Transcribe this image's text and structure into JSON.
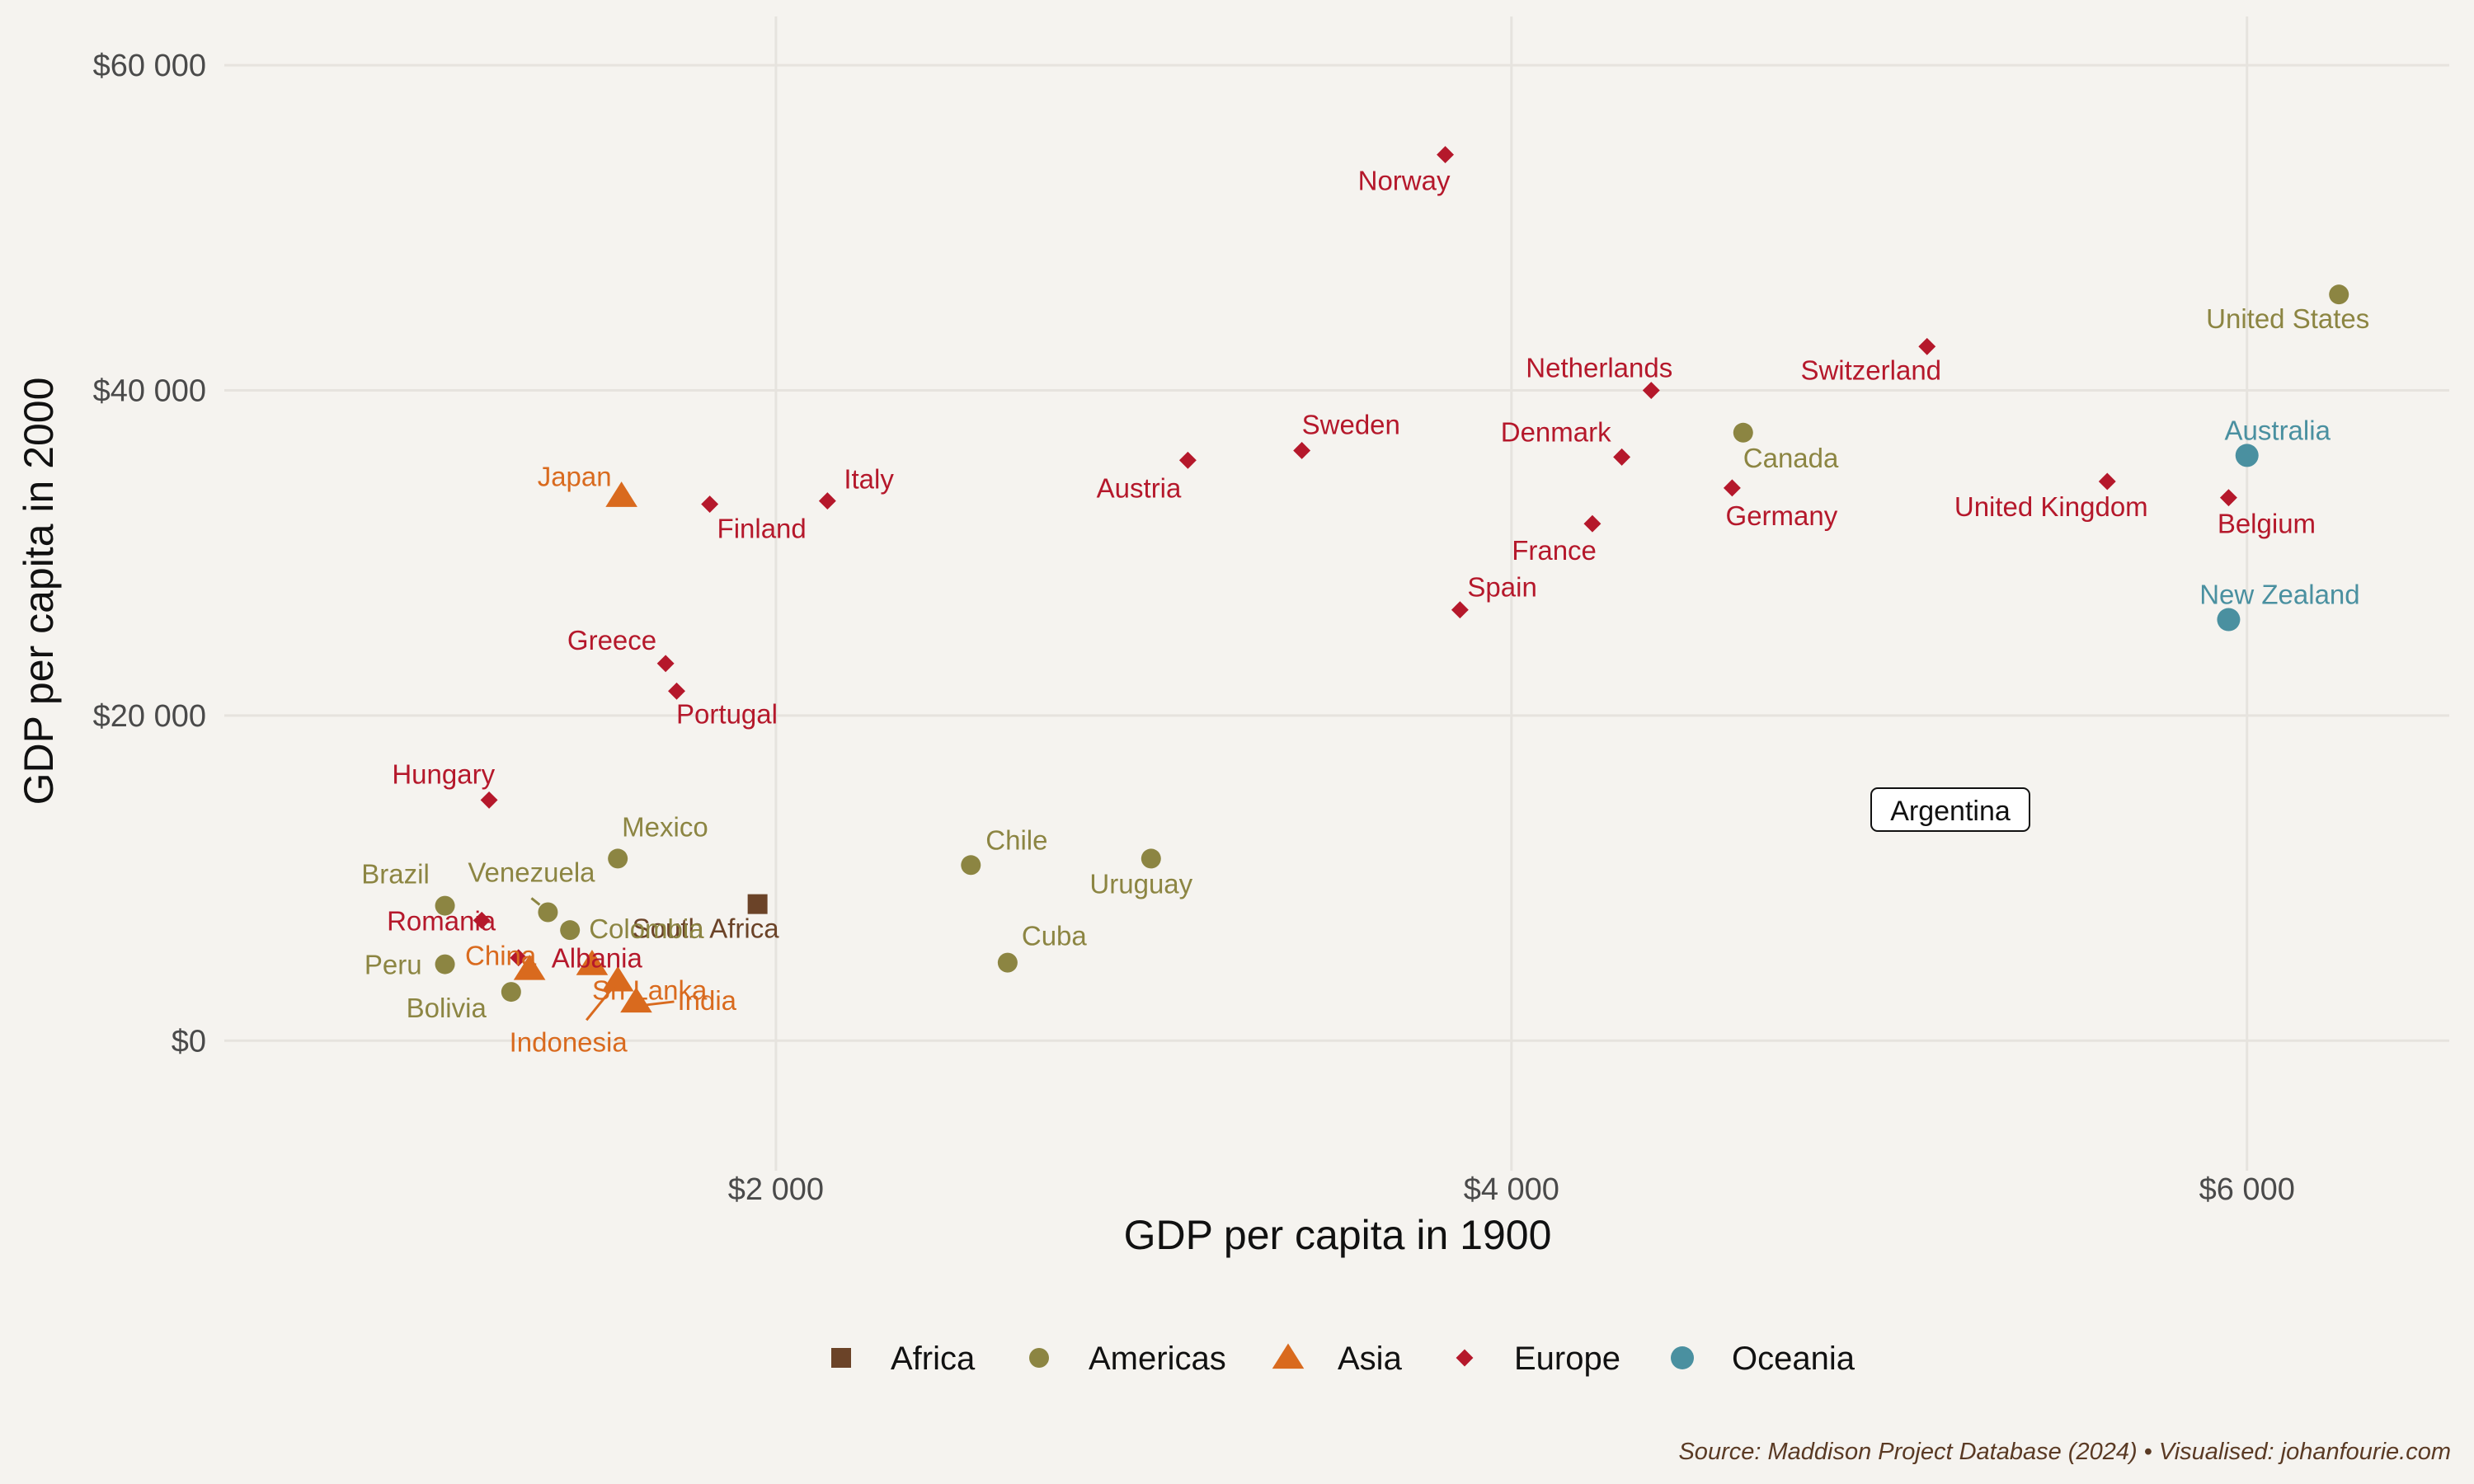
{
  "chart_data": {
    "type": "scatter",
    "xlabel": "GDP per capita in 1900",
    "ylabel": "GDP per capita in 2000",
    "xlim": [
      500,
      6550
    ],
    "ylim": [
      -8000,
      63000
    ],
    "x_ticks": [
      2000,
      4000,
      6000
    ],
    "x_tick_labels": [
      "$2 000",
      "$4 000",
      "$6 000"
    ],
    "y_ticks": [
      0,
      20000,
      40000,
      60000
    ],
    "y_tick_labels": [
      "$0",
      "$20 000",
      "$40 000",
      "$60 000"
    ],
    "grid": true,
    "legend_position": "bottom",
    "caption": "Source: Maddison Project Database (2024) • Visualised: johanfourie.com",
    "annotation": {
      "text": "Argentina",
      "x": 5120,
      "y": 17000
    },
    "series": [
      {
        "name": "Africa",
        "shape": "square",
        "color": "#6b4328",
        "points": [
          {
            "label": "South Africa",
            "x": 1950,
            "y": 8400
          }
        ]
      },
      {
        "name": "Americas",
        "shape": "circle",
        "color": "#8c8542",
        "points": [
          {
            "label": "United States",
            "x": 6250,
            "y": 45900
          },
          {
            "label": "Canada",
            "x": 4630,
            "y": 37400
          },
          {
            "label": "Mexico",
            "x": 1570,
            "y": 11200
          },
          {
            "label": "Chile",
            "x": 2530,
            "y": 10800
          },
          {
            "label": "Uruguay",
            "x": 3020,
            "y": 11200
          },
          {
            "label": "Cuba",
            "x": 2630,
            "y": 4800
          },
          {
            "label": "Brazil",
            "x": 1100,
            "y": 8300
          },
          {
            "label": "Venezuela",
            "x": 1380,
            "y": 7900
          },
          {
            "label": "Colombia",
            "x": 1440,
            "y": 6800
          },
          {
            "label": "Peru",
            "x": 1100,
            "y": 4700
          },
          {
            "label": "Bolivia",
            "x": 1280,
            "y": 3000
          }
        ]
      },
      {
        "name": "Asia",
        "shape": "triangle",
        "color": "#d96a1e",
        "points": [
          {
            "label": "Japan",
            "x": 1580,
            "y": 33500
          },
          {
            "label": "China",
            "x": 1330,
            "y": 4400
          },
          {
            "label": "Indonesia",
            "x": 1570,
            "y": 3700
          },
          {
            "label": "India",
            "x": 1620,
            "y": 2400
          },
          {
            "label": "Sri Lanka",
            "x": 1500,
            "y": 4700
          }
        ]
      },
      {
        "name": "Europe",
        "shape": "diamond",
        "color": "#b5182b",
        "points": [
          {
            "label": "Norway",
            "x": 3820,
            "y": 54500
          },
          {
            "label": "Switzerland",
            "x": 5130,
            "y": 42700
          },
          {
            "label": "Netherlands",
            "x": 4380,
            "y": 40000
          },
          {
            "label": "Denmark",
            "x": 4300,
            "y": 35900
          },
          {
            "label": "Sweden",
            "x": 3430,
            "y": 36300
          },
          {
            "label": "Austria",
            "x": 3120,
            "y": 35700
          },
          {
            "label": "Italy",
            "x": 2140,
            "y": 33200
          },
          {
            "label": "Finland",
            "x": 1820,
            "y": 33000
          },
          {
            "label": "Germany",
            "x": 4600,
            "y": 34000
          },
          {
            "label": "France",
            "x": 4220,
            "y": 31800
          },
          {
            "label": "United Kingdom",
            "x": 5620,
            "y": 34400
          },
          {
            "label": "Belgium",
            "x": 5950,
            "y": 33400
          },
          {
            "label": "Spain",
            "x": 3860,
            "y": 26500
          },
          {
            "label": "Greece",
            "x": 1700,
            "y": 23200
          },
          {
            "label": "Portugal",
            "x": 1730,
            "y": 21500
          },
          {
            "label": "Hungary",
            "x": 1220,
            "y": 14800
          },
          {
            "label": "Romania",
            "x": 1200,
            "y": 7400
          },
          {
            "label": "Albania",
            "x": 1300,
            "y": 5100
          }
        ]
      },
      {
        "name": "Oceania",
        "shape": "circle",
        "color": "#4a90a0",
        "points": [
          {
            "label": "Australia",
            "x": 6000,
            "y": 36000
          },
          {
            "label": "New Zealand",
            "x": 5950,
            "y": 25900
          }
        ]
      }
    ]
  }
}
